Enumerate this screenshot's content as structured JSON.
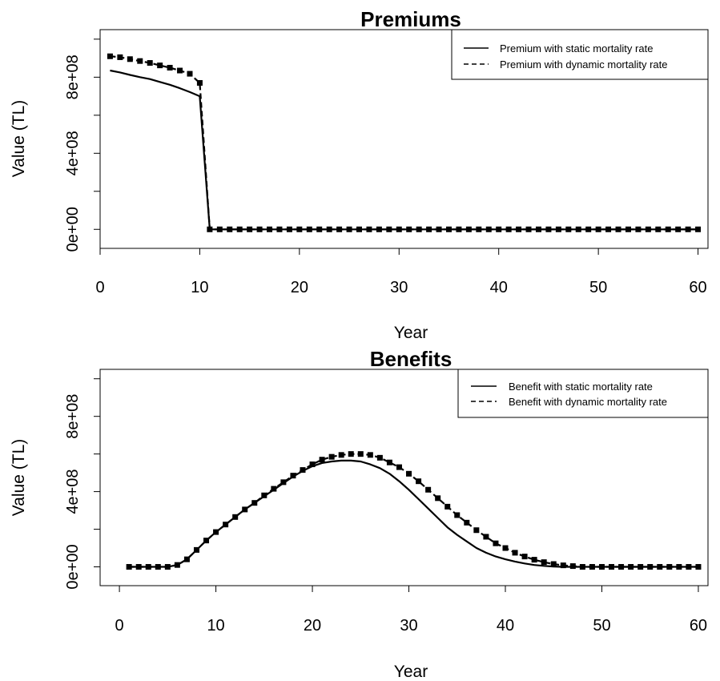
{
  "chart_data": [
    {
      "type": "line",
      "title": "Premiums",
      "xlabel": "Year",
      "ylabel": "Value (TL)",
      "xlim": [
        0,
        61
      ],
      "ylim": [
        -100000000.0,
        1050000000.0
      ],
      "x_ticks": [
        0,
        10,
        20,
        30,
        40,
        50,
        60
      ],
      "x_tick_labels": [
        "0",
        "10",
        "20",
        "30",
        "40",
        "50",
        "60"
      ],
      "y_ticks": [
        0,
        400000000,
        800000000
      ],
      "y_tick_labels": [
        "0e+00",
        "4e+08",
        "8e+08"
      ],
      "y_minor_ticks": [
        0,
        200000000,
        400000000,
        600000000,
        800000000,
        1000000000
      ],
      "grid": false,
      "legend_position": "top-right",
      "series": [
        {
          "name": "Premium with static mortality rate",
          "line": "solid",
          "marker": "none",
          "x": [
            1,
            2,
            3,
            4,
            5,
            6,
            7,
            8,
            9,
            10,
            11,
            12,
            13,
            14,
            15,
            16,
            17,
            18,
            19,
            20,
            21,
            22,
            23,
            24,
            25,
            26,
            27,
            28,
            29,
            30,
            31,
            32,
            33,
            34,
            35,
            36,
            37,
            38,
            39,
            40,
            41,
            42,
            43,
            44,
            45,
            46,
            47,
            48,
            49,
            50,
            51,
            52,
            53,
            54,
            55,
            56,
            57,
            58,
            59,
            60
          ],
          "values": [
            835000000,
            825000000,
            812000000,
            800000000,
            790000000,
            775000000,
            760000000,
            742000000,
            722000000,
            700000000,
            0,
            0,
            0,
            0,
            0,
            0,
            0,
            0,
            0,
            0,
            0,
            0,
            0,
            0,
            0,
            0,
            0,
            0,
            0,
            0,
            0,
            0,
            0,
            0,
            0,
            0,
            0,
            0,
            0,
            0,
            0,
            0,
            0,
            0,
            0,
            0,
            0,
            0,
            0,
            0,
            0,
            0,
            0,
            0,
            0,
            0,
            0,
            0,
            0,
            0
          ]
        },
        {
          "name": "Premium with dynamic mortality rate",
          "line": "dashed",
          "marker": "square",
          "x": [
            1,
            2,
            3,
            4,
            5,
            6,
            7,
            8,
            9,
            10,
            11,
            12,
            13,
            14,
            15,
            16,
            17,
            18,
            19,
            20,
            21,
            22,
            23,
            24,
            25,
            26,
            27,
            28,
            29,
            30,
            31,
            32,
            33,
            34,
            35,
            36,
            37,
            38,
            39,
            40,
            41,
            42,
            43,
            44,
            45,
            46,
            47,
            48,
            49,
            50,
            51,
            52,
            53,
            54,
            55,
            56,
            57,
            58,
            59,
            60
          ],
          "values": [
            910000000,
            905000000,
            895000000,
            885000000,
            875000000,
            862000000,
            850000000,
            835000000,
            818000000,
            770000000,
            0,
            0,
            0,
            0,
            0,
            0,
            0,
            0,
            0,
            0,
            0,
            0,
            0,
            0,
            0,
            0,
            0,
            0,
            0,
            0,
            0,
            0,
            0,
            0,
            0,
            0,
            0,
            0,
            0,
            0,
            0,
            0,
            0,
            0,
            0,
            0,
            0,
            0,
            0,
            0,
            0,
            0,
            0,
            0,
            0,
            0,
            0,
            0,
            0,
            0
          ]
        }
      ]
    },
    {
      "type": "line",
      "title": "Benefits",
      "xlabel": "Year",
      "ylabel": "Value (TL)",
      "xlim": [
        -2,
        61
      ],
      "ylim": [
        -100000000.0,
        1050000000.0
      ],
      "x_ticks": [
        0,
        10,
        20,
        30,
        40,
        50,
        60
      ],
      "x_tick_labels": [
        "0",
        "10",
        "20",
        "30",
        "40",
        "50",
        "60"
      ],
      "y_ticks": [
        0,
        400000000,
        800000000
      ],
      "y_tick_labels": [
        "0e+00",
        "4e+08",
        "8e+08"
      ],
      "y_minor_ticks": [
        0,
        200000000,
        400000000,
        600000000,
        800000000,
        1000000000
      ],
      "grid": false,
      "legend_position": "top-right",
      "series": [
        {
          "name": "Benefit with static mortality rate",
          "line": "solid",
          "marker": "none",
          "x": [
            1,
            2,
            3,
            4,
            5,
            6,
            7,
            8,
            9,
            10,
            11,
            12,
            13,
            14,
            15,
            16,
            17,
            18,
            19,
            20,
            21,
            22,
            23,
            24,
            25,
            26,
            27,
            28,
            29,
            30,
            31,
            32,
            33,
            34,
            35,
            36,
            37,
            38,
            39,
            40,
            41,
            42,
            43,
            44,
            45,
            46,
            47,
            48,
            49,
            50,
            51,
            52,
            53,
            54,
            55,
            56,
            57,
            58,
            59,
            60
          ],
          "values": [
            0,
            0,
            0,
            0,
            0,
            10000000,
            40000000,
            90000000,
            140000000,
            185000000,
            225000000,
            265000000,
            305000000,
            340000000,
            375000000,
            410000000,
            445000000,
            480000000,
            510000000,
            535000000,
            552000000,
            560000000,
            565000000,
            565000000,
            560000000,
            545000000,
            525000000,
            495000000,
            455000000,
            410000000,
            360000000,
            310000000,
            260000000,
            210000000,
            170000000,
            135000000,
            100000000,
            75000000,
            55000000,
            40000000,
            28000000,
            18000000,
            10000000,
            5000000,
            2000000,
            0,
            0,
            0,
            0,
            0,
            0,
            0,
            0,
            0,
            0,
            0,
            0,
            0,
            0,
            0
          ]
        },
        {
          "name": "Benefit with dynamic mortality rate",
          "line": "dashed",
          "marker": "square",
          "x": [
            1,
            2,
            3,
            4,
            5,
            6,
            7,
            8,
            9,
            10,
            11,
            12,
            13,
            14,
            15,
            16,
            17,
            18,
            19,
            20,
            21,
            22,
            23,
            24,
            25,
            26,
            27,
            28,
            29,
            30,
            31,
            32,
            33,
            34,
            35,
            36,
            37,
            38,
            39,
            40,
            41,
            42,
            43,
            44,
            45,
            46,
            47,
            48,
            49,
            50,
            51,
            52,
            53,
            54,
            55,
            56,
            57,
            58,
            59,
            60
          ],
          "values": [
            0,
            0,
            0,
            0,
            0,
            10000000,
            40000000,
            90000000,
            140000000,
            185000000,
            225000000,
            265000000,
            305000000,
            340000000,
            380000000,
            415000000,
            450000000,
            485000000,
            515000000,
            545000000,
            570000000,
            585000000,
            595000000,
            600000000,
            600000000,
            595000000,
            580000000,
            555000000,
            530000000,
            495000000,
            455000000,
            410000000,
            365000000,
            320000000,
            275000000,
            235000000,
            195000000,
            160000000,
            125000000,
            100000000,
            75000000,
            55000000,
            38000000,
            25000000,
            15000000,
            8000000,
            4000000,
            0,
            0,
            0,
            0,
            0,
            0,
            0,
            0,
            0,
            0,
            0,
            0,
            0
          ]
        }
      ]
    }
  ]
}
